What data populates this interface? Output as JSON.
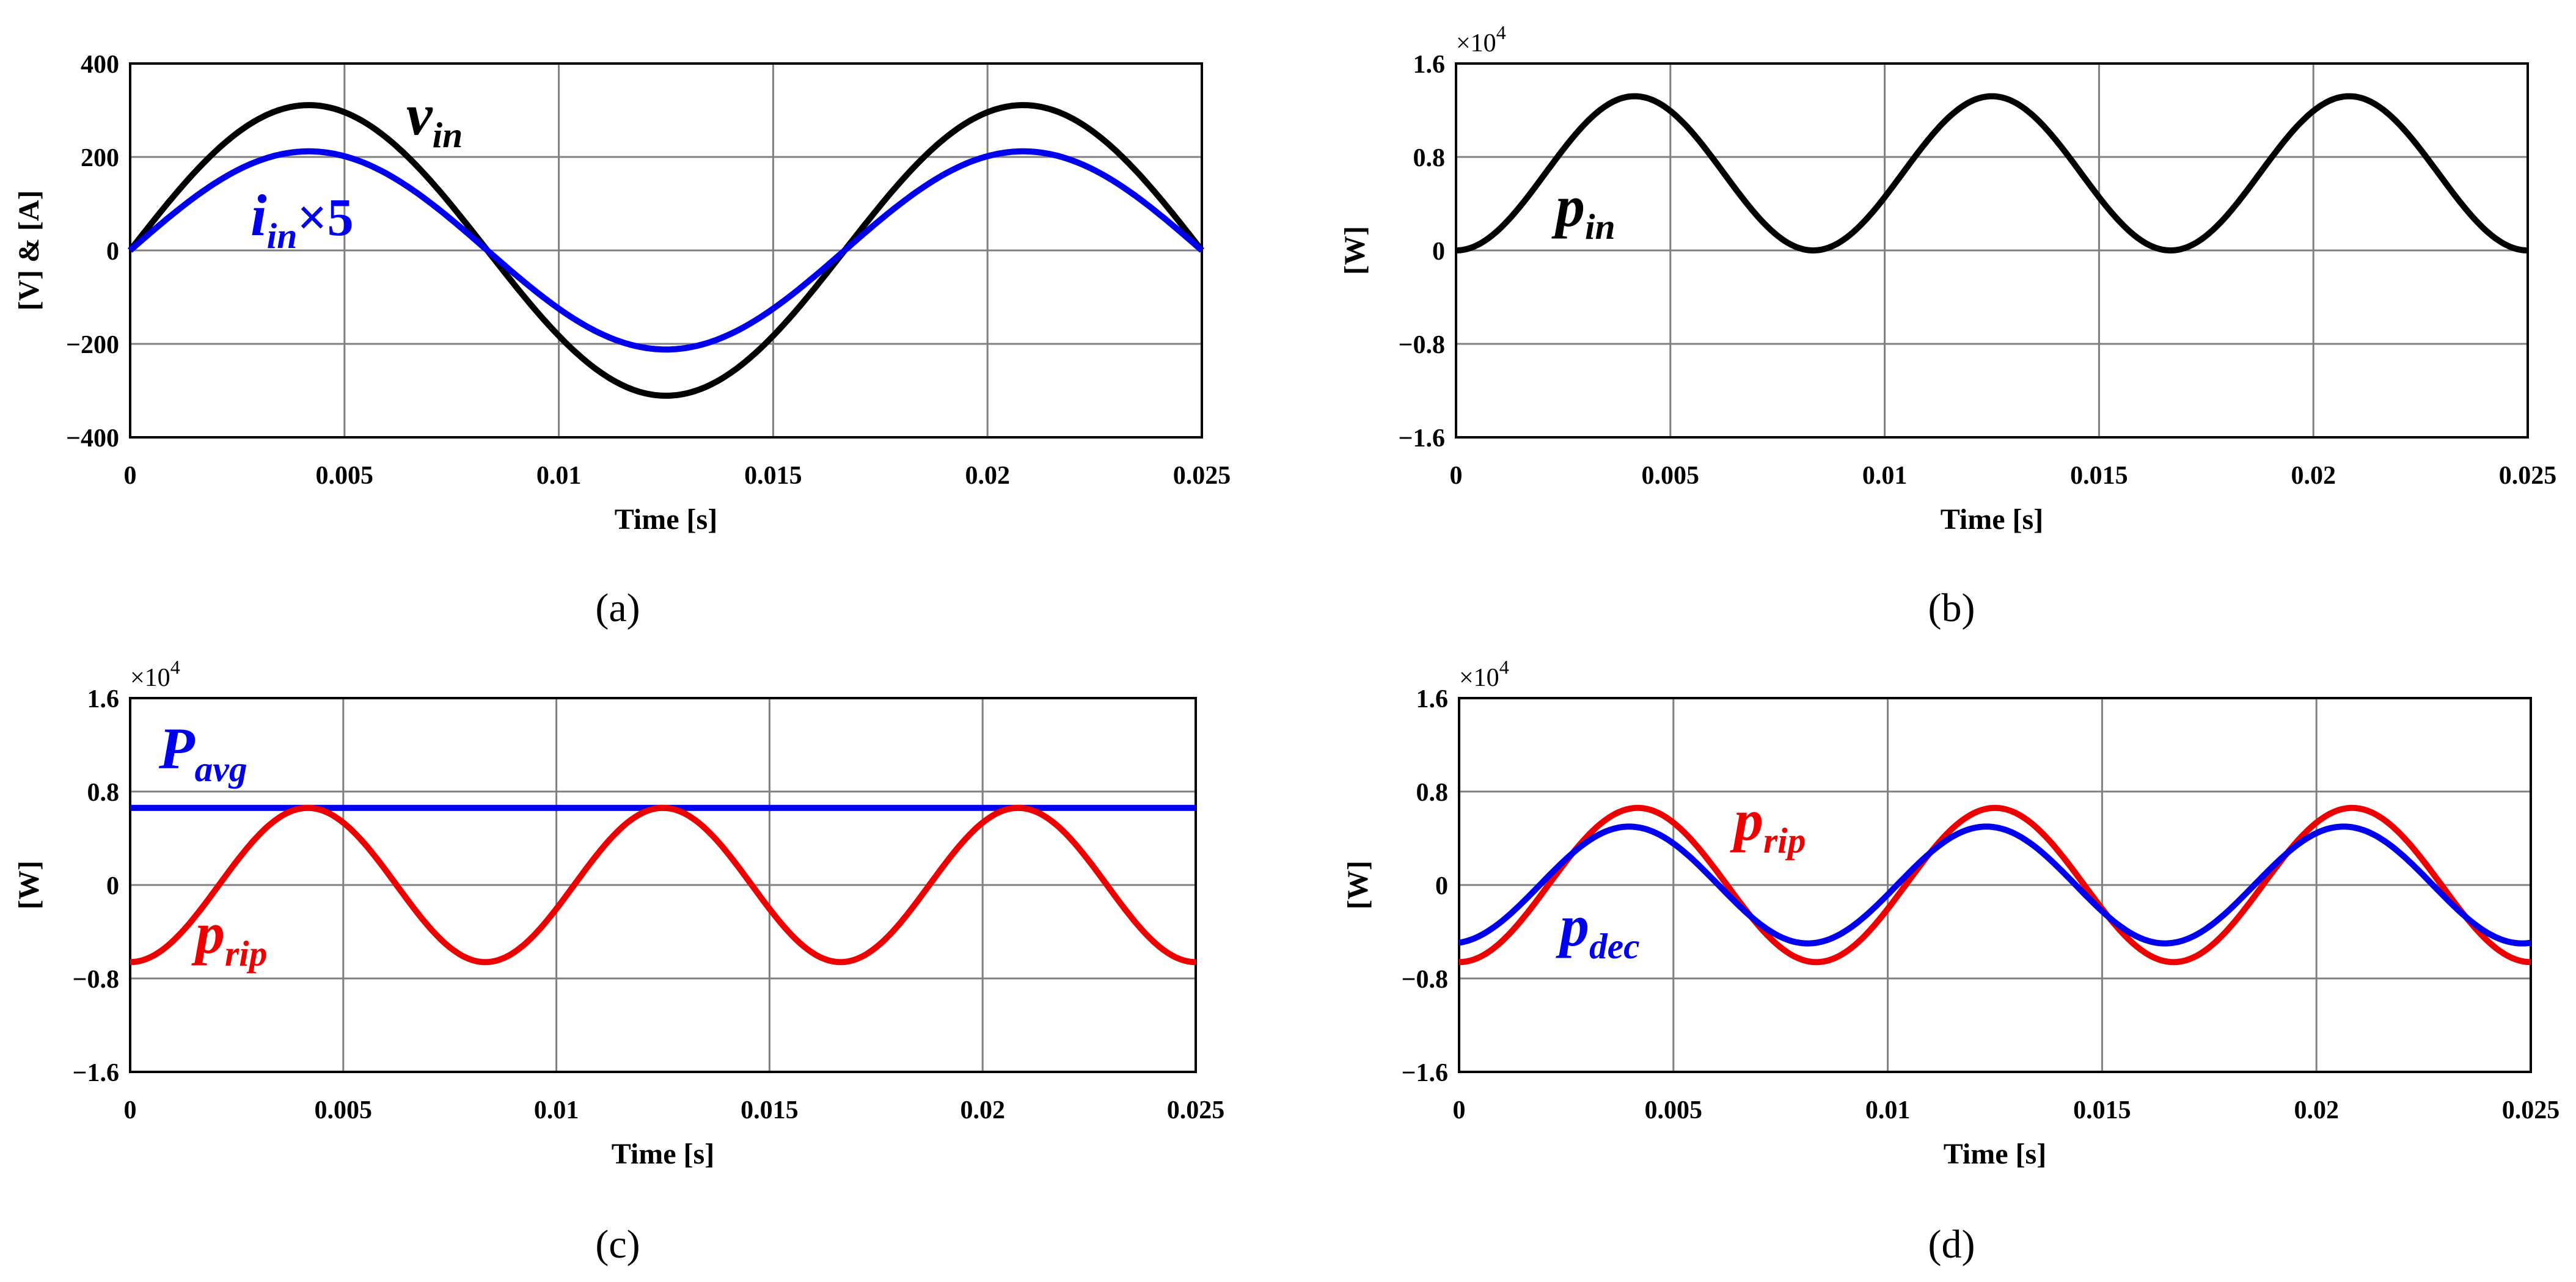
{
  "chart_data": [
    {
      "panel": "a",
      "type": "line",
      "caption": "a",
      "xlabel": "Time [s]",
      "ylabel": "[V] & [A]",
      "xlim": [
        0,
        0.025
      ],
      "ylim": [
        -400,
        400
      ],
      "xticks": [
        0,
        0.005,
        0.01,
        0.015,
        0.02,
        0.025
      ],
      "xtick_labels": [
        "0",
        "0.005",
        "0.01",
        "0.015",
        "0.02",
        "0.025"
      ],
      "yticks": [
        400,
        200,
        0,
        -200,
        -400
      ],
      "ytick_labels": [
        "400",
        "200",
        "0",
        "−200",
        "−400"
      ],
      "multiplier": "",
      "frequency_hz": 60,
      "series": [
        {
          "name": "v_in",
          "color": "#000000",
          "amplitude": 311,
          "shape": "sine"
        },
        {
          "name": "i_in x 5",
          "color": "#0000ee",
          "amplitude": 212,
          "shape": "sine"
        }
      ],
      "annotations": [
        {
          "base": "v",
          "sub": "in",
          "suffix": "",
          "color": "#000000"
        },
        {
          "base": "i",
          "sub": "in",
          "suffix": "×5",
          "color": "#0000ee"
        }
      ]
    },
    {
      "panel": "b",
      "type": "line",
      "caption": "b",
      "xlabel": "Time [s]",
      "ylabel": "[W]",
      "xlim": [
        0,
        0.025
      ],
      "ylim": [
        -1.6,
        1.6
      ],
      "xticks": [
        0,
        0.005,
        0.01,
        0.015,
        0.02,
        0.025
      ],
      "xtick_labels": [
        "0",
        "0.005",
        "0.01",
        "0.015",
        "0.02",
        "0.025"
      ],
      "yticks": [
        1.6,
        0.8,
        0,
        -0.8,
        -1.6
      ],
      "ytick_labels": [
        "1.6",
        "0.8",
        "0",
        "−0.8",
        "−1.6"
      ],
      "multiplier": "×10",
      "multiplier_exp": "4",
      "frequency_hz": 60,
      "series": [
        {
          "name": "p_in",
          "color": "#000000",
          "amplitude": 1.32,
          "shape": "sin2"
        }
      ],
      "annotations": [
        {
          "base": "p",
          "sub": "in",
          "suffix": "",
          "color": "#000000"
        }
      ]
    },
    {
      "panel": "c",
      "type": "line",
      "caption": "c",
      "xlabel": "Time [s]",
      "ylabel": "[W]",
      "xlim": [
        0,
        0.025
      ],
      "ylim": [
        -1.6,
        1.6
      ],
      "xticks": [
        0,
        0.005,
        0.01,
        0.015,
        0.02,
        0.025
      ],
      "xtick_labels": [
        "0",
        "0.005",
        "0.01",
        "0.015",
        "0.02",
        "0.025"
      ],
      "yticks": [
        1.6,
        0.8,
        0,
        -0.8,
        -1.6
      ],
      "ytick_labels": [
        "1.6",
        "0.8",
        "0",
        "−0.8",
        "−1.6"
      ],
      "multiplier": "×10",
      "multiplier_exp": "4",
      "frequency_hz": 60,
      "series": [
        {
          "name": "P_avg",
          "color": "#0000ee",
          "amplitude": 0.66,
          "shape": "const"
        },
        {
          "name": "p_rip",
          "color": "#ee0000",
          "amplitude": 0.66,
          "shape": "negcos2"
        }
      ],
      "annotations": [
        {
          "base": "P",
          "sub": "avg",
          "suffix": "",
          "color": "#0000ee"
        },
        {
          "base": "p",
          "sub": "rip",
          "suffix": "",
          "color": "#ee0000"
        }
      ]
    },
    {
      "panel": "d",
      "type": "line",
      "caption": "d",
      "xlabel": "Time [s]",
      "ylabel": "[W]",
      "xlim": [
        0,
        0.025
      ],
      "ylim": [
        -1.6,
        1.6
      ],
      "xticks": [
        0,
        0.005,
        0.01,
        0.015,
        0.02,
        0.025
      ],
      "xtick_labels": [
        "0",
        "0.005",
        "0.01",
        "0.015",
        "0.02",
        "0.025"
      ],
      "yticks": [
        1.6,
        0.8,
        0,
        -0.8,
        -1.6
      ],
      "ytick_labels": [
        "1.6",
        "0.8",
        "0",
        "−0.8",
        "−1.6"
      ],
      "multiplier": "×10",
      "multiplier_exp": "4",
      "frequency_hz": 60,
      "series": [
        {
          "name": "p_rip",
          "color": "#ee0000",
          "amplitude": 0.66,
          "shape": "negcos2"
        },
        {
          "name": "p_dec",
          "color": "#0000ee",
          "amplitude": 0.5,
          "shape": "negcos2shift",
          "phase_s": 0.0002
        }
      ],
      "annotations": [
        {
          "base": "p",
          "sub": "rip",
          "suffix": "",
          "color": "#ee0000"
        },
        {
          "base": "p",
          "sub": "dec",
          "suffix": "",
          "color": "#0000ee"
        }
      ]
    }
  ]
}
